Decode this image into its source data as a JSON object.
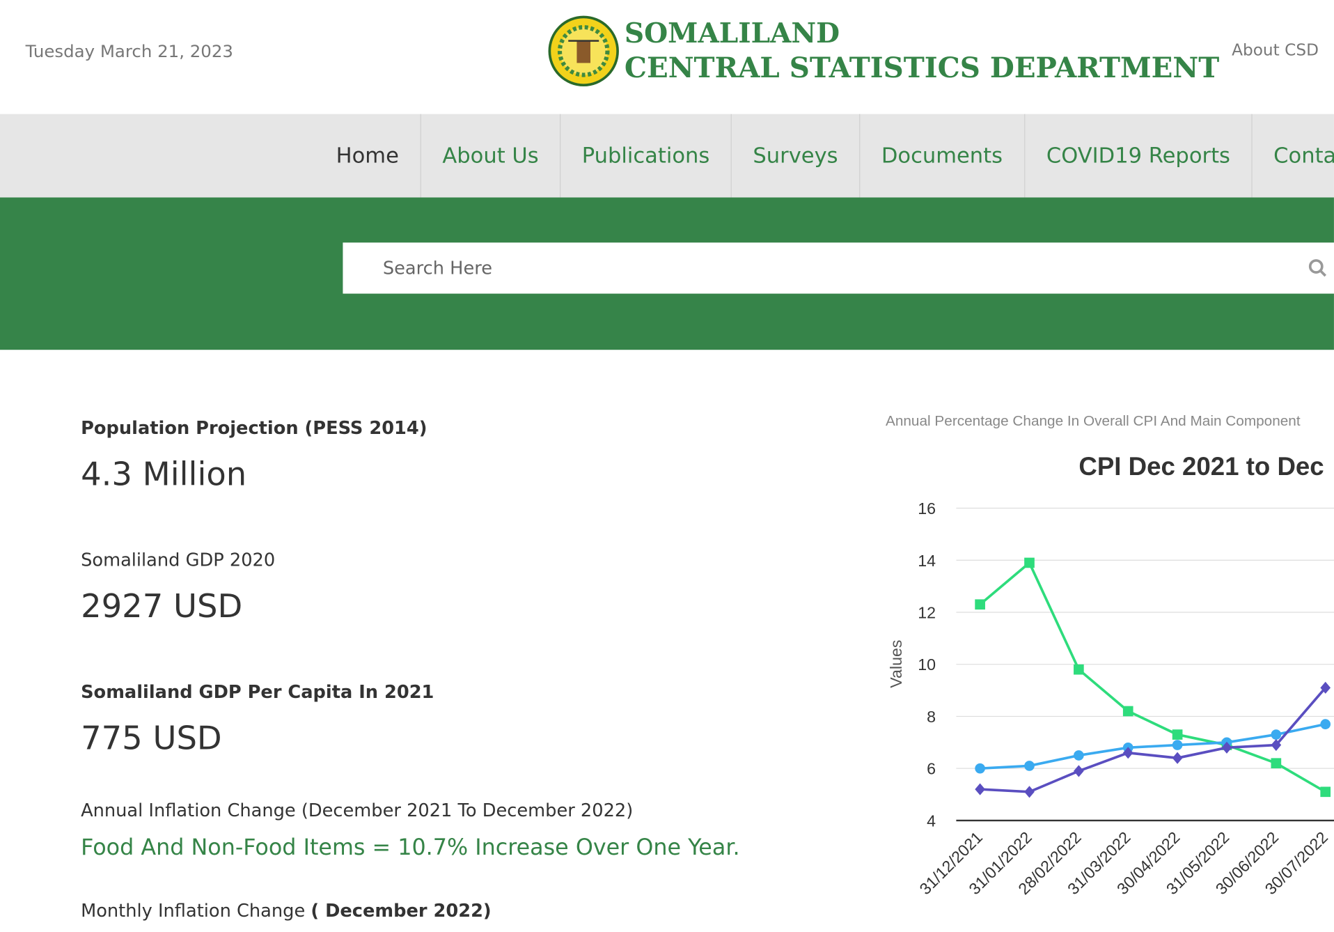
{
  "header": {
    "date": "Tuesday March 21, 2023",
    "logo_line1": "SOMALILAND",
    "logo_line2": "CENTRAL STATISTICS DEPARTMENT",
    "about_link": "About CSD"
  },
  "nav": [
    "Home",
    "About Us",
    "Publications",
    "Surveys",
    "Documents",
    "COVID19 Reports",
    "Conta"
  ],
  "search": {
    "placeholder": "Search Here"
  },
  "stats": {
    "population_label": "Population Projection (PESS 2014)",
    "population_value": "4.3 Million",
    "gdp_label": "Somaliland GDP 2020",
    "gdp_value": "2927 USD",
    "gdp_pc_label": "Somaliland GDP Per Capita In 2021",
    "gdp_pc_value": "775 USD",
    "annual_label": "Annual Inflation Change (December 2021 To December 2022)",
    "annual_value": "Food And Non-Food Items = 10.7% Increase Over One Year.",
    "monthly_label": "Monthly Inflation Change",
    "monthly_period": "( December 2022)"
  },
  "chart_data": {
    "type": "line",
    "caption": "Annual Percentage Change In Overall CPI And Main Component",
    "title": "CPI Dec 2021 to Dec",
    "y_label": "Values",
    "x": [
      "31/12/2021",
      "31/01/2022",
      "28/02/2022",
      "31/03/2022",
      "30/04/2022",
      "31/05/2022",
      "30/06/2022",
      "30/07/2022"
    ],
    "series": [
      {
        "color": "#2edc7c",
        "marker": "square",
        "values": [
          12.3,
          13.9,
          9.8,
          8.2,
          7.3,
          6.9,
          6.2,
          5.1
        ]
      },
      {
        "color": "#3aaaf0",
        "marker": "circle",
        "values": [
          6.0,
          6.1,
          6.5,
          6.8,
          6.9,
          7.0,
          7.3,
          7.7
        ]
      },
      {
        "color": "#5a4ec0",
        "marker": "diamond",
        "values": [
          5.2,
          5.1,
          5.9,
          6.6,
          6.4,
          6.8,
          6.9,
          9.1
        ]
      }
    ],
    "ylim": [
      4,
      16
    ],
    "yticks": [
      4,
      6,
      8,
      10,
      12,
      14,
      16
    ],
    "grid": true
  }
}
